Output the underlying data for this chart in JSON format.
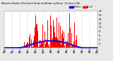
{
  "bg_color": "#e8e8e8",
  "plot_bg": "#ffffff",
  "bar_color": "#ff0000",
  "median_color": "#0000cc",
  "legend_actual_color": "#ff0000",
  "legend_median_color": "#0000cc",
  "legend_actual_label": "Actual",
  "legend_median_label": "Median",
  "ylim": [
    0,
    18
  ],
  "yticks": [
    2,
    4,
    6,
    8,
    10,
    12,
    14,
    16,
    18
  ],
  "num_points": 1440,
  "grid_color": "#aaaaaa",
  "spine_color": "#888888"
}
